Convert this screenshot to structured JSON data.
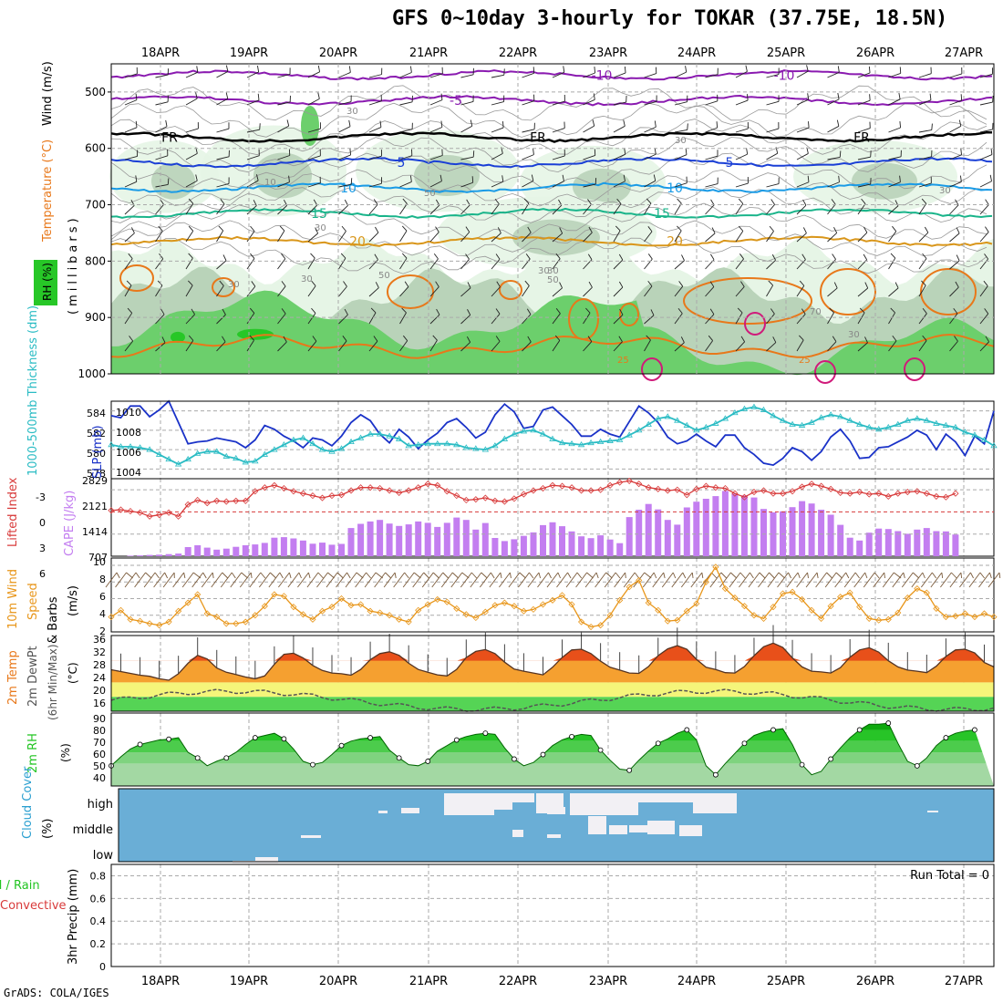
{
  "title": "GFS 0~10day 3-hourly for TOKAR (37.75E, 18.5N)",
  "credit": "GrADS: COLA/IGES",
  "colors": {
    "purple": "#8a1ab0",
    "black": "#000000",
    "blue": "#1a3fd6",
    "cyan_blue": "#1a9be6",
    "teal": "#19b48a",
    "gold": "#d9961a",
    "orange": "#e8781a",
    "magenta": "#d01a7a",
    "rh_light": "#e6f5e6",
    "rh_mid": "#b9d3b9",
    "rh_green": "#6ccf6c",
    "rh_bright": "#27c727",
    "slp": "#1a32c8",
    "thick": "#2bbcc4",
    "li": "#d83a3a",
    "cape": "#c37ef0",
    "wind10": "#e8961a",
    "cloud_sky": "#6aaed6",
    "cloud": "#f2f0f4",
    "rh2m": "#22c422"
  },
  "chart_data": [
    {
      "type": "contour",
      "panel": "upper-air cross section",
      "date_labels": [
        "18APR",
        "19APR",
        "20APR",
        "21APR",
        "22APR",
        "23APR",
        "24APR",
        "25APR",
        "26APR",
        "27APR"
      ],
      "ylabel": [
        "Temperature (°C)",
        "Wind (m/s)"
      ],
      "ylabel_pressure": "(millibars)",
      "rh_label": "RH (%)",
      "y_ticks": [
        500,
        600,
        700,
        800,
        900,
        1000
      ],
      "ylim": [
        450,
        1000
      ],
      "isotherms": [
        {
          "label": "-10",
          "pressure": 470,
          "color": "purple"
        },
        {
          "label": "-5",
          "pressure": 515,
          "color": "purple"
        },
        {
          "label": "FR",
          "pressure": 580,
          "color": "black"
        },
        {
          "label": "5",
          "pressure": 625,
          "color": "blue"
        },
        {
          "label": "10",
          "pressure": 670,
          "color": "cyan_blue"
        },
        {
          "label": "15",
          "pressure": 715,
          "color": "teal"
        },
        {
          "label": "20",
          "pressure": 765,
          "color": "gold"
        }
      ],
      "contour_labels": [
        "10",
        "30",
        "30",
        "50",
        "30",
        "50",
        "30",
        "30",
        "50",
        "70",
        "30",
        "30",
        "30",
        "30",
        "25",
        "25"
      ]
    },
    {
      "type": "line",
      "panel": "slp-thickness",
      "ylabel_left": "1000-500mb Thickness (dm)",
      "ylabel_right": "SLP (mb)",
      "left_ticks": [
        "584",
        "582",
        "580",
        "578"
      ],
      "right_ticks": [
        "1010",
        "1008",
        "1006",
        "1004"
      ],
      "ylim_slp": [
        1003,
        1011
      ],
      "series": [
        {
          "name": "SLP",
          "color": "slp",
          "values": [
            1009.5,
            1009.3,
            1010.5,
            1010.5,
            1009.4,
            1010.1,
            1011.0,
            1008.8,
            1006.6,
            1006.8,
            1006.9,
            1007.2,
            1007.0,
            1006.8,
            1006.2,
            1007.0,
            1008.5,
            1008.1,
            1007.4,
            1006.9,
            1006.2,
            1007.2,
            1007.0,
            1006.4,
            1007.4,
            1008.8,
            1009.6,
            1009.0,
            1007.6,
            1006.7,
            1008.1,
            1007.3,
            1006.1,
            1007.0,
            1007.7,
            1008.8,
            1009.2,
            1008.3,
            1007.2,
            1007.8,
            1009.6,
            1010.7,
            1009.9,
            1008.2,
            1008.4,
            1010.1,
            1010.4,
            1009.5,
            1008.6,
            1007.4,
            1007.4,
            1008.1,
            1007.6,
            1007.3,
            1008.9,
            1010.5,
            1009.8,
            1008.8,
            1007.3,
            1006.6,
            1006.9,
            1007.6,
            1006.9,
            1006.3,
            1007.5,
            1007.5,
            1006.2,
            1005.5,
            1004.6,
            1004.4,
            1005.1,
            1006.2,
            1005.8,
            1004.9,
            1005.8,
            1007.3,
            1008.1,
            1006.9,
            1005.1,
            1005.2,
            1006.2,
            1006.3,
            1006.8,
            1007.3,
            1008.0,
            1007.5,
            1006.0,
            1007.6,
            1006.8,
            1005.4,
            1007.4,
            1006.6,
            1010.0
          ]
        },
        {
          "name": "Thickness",
          "color": "thick",
          "values": [
            1006.5,
            1006.3,
            1006.3,
            1006.2,
            1006.0,
            1005.5,
            1005.0,
            1004.5,
            1005.0,
            1005.6,
            1005.8,
            1005.8,
            1005.3,
            1005.1,
            1004.7,
            1004.8,
            1005.5,
            1006.0,
            1006.5,
            1007.0,
            1007.2,
            1006.6,
            1006.0,
            1005.8,
            1006.1,
            1006.8,
            1007.2,
            1007.6,
            1007.6,
            1007.4,
            1007.1,
            1006.4,
            1006.5,
            1006.6,
            1006.6,
            1006.6,
            1006.5,
            1006.2,
            1006.1,
            1006.0,
            1006.4,
            1007.1,
            1007.6,
            1007.9,
            1008.0,
            1007.6,
            1007.1,
            1006.7,
            1006.6,
            1006.5,
            1006.7,
            1006.8,
            1006.9,
            1007.0,
            1007.5,
            1008.0,
            1008.6,
            1009.2,
            1009.4,
            1009.0,
            1008.5,
            1008.0,
            1008.3,
            1008.7,
            1009.2,
            1009.8,
            1010.2,
            1010.4,
            1010.1,
            1009.5,
            1009.0,
            1008.6,
            1008.5,
            1008.8,
            1009.3,
            1009.6,
            1009.4,
            1009.0,
            1008.6,
            1008.3,
            1008.1,
            1008.3,
            1008.6,
            1009.0,
            1009.2,
            1009.0,
            1008.7,
            1008.5,
            1008.3,
            1007.8,
            1007.5,
            1007.0,
            1006.4
          ]
        }
      ]
    },
    {
      "type": "bar-line",
      "panel": "cape-lifted-index",
      "ylabel_left": "Lifted Index",
      "ylabel_right": "CAPE (J/kg)",
      "li_ticks": [
        "-3",
        "0",
        "3",
        "6"
      ],
      "cape_ticks": [
        "2829",
        "2121",
        "1414",
        "707"
      ],
      "cape_values": [
        0,
        0,
        20,
        30,
        50,
        60,
        80,
        100,
        350,
        420,
        330,
        250,
        290,
        360,
        420,
        450,
        510,
        710,
        730,
        680,
        600,
        480,
        520,
        440,
        470,
        1080,
        1240,
        1330,
        1390,
        1250,
        1160,
        1220,
        1330,
        1280,
        1120,
        1280,
        1480,
        1390,
        1020,
        1270,
        700,
        580,
        650,
        780,
        910,
        1190,
        1300,
        1150,
        950,
        760,
        690,
        800,
        640,
        500,
        1500,
        1780,
        2000,
        1790,
        1390,
        1210,
        1870,
        2090,
        2200,
        2300,
        2500,
        2400,
        2330,
        2250,
        1810,
        1680,
        1720,
        1880,
        2110,
        2020,
        1780,
        1590,
        1200,
        710,
        600,
        900,
        1060,
        1040,
        960,
        860,
        1020,
        1080,
        960,
        950,
        830
      ],
      "li_values": [
        -0.2,
        -0.3,
        -0.1,
        0.1,
        0.6,
        0.4,
        0.1,
        0.6,
        -1.0,
        -1.6,
        -1.2,
        -1.5,
        -1.4,
        -1.5,
        -1.5,
        -2.8,
        -3.3,
        -3.6,
        -3.2,
        -2.8,
        -2.5,
        -2.2,
        -1.9,
        -2.2,
        -2.3,
        -2.9,
        -3.3,
        -3.3,
        -3.2,
        -2.9,
        -2.6,
        -2.9,
        -3.3,
        -3.8,
        -3.6,
        -2.8,
        -2.2,
        -1.6,
        -1.7,
        -1.9,
        -1.5,
        -1.4,
        -1.8,
        -2.4,
        -2.9,
        -3.2,
        -3.6,
        -3.5,
        -3.3,
        -2.9,
        -2.9,
        -3.0,
        -3.6,
        -4.0,
        -4.2,
        -3.8,
        -3.3,
        -3.1,
        -2.9,
        -3.0,
        -2.3,
        -3.1,
        -3.5,
        -3.3,
        -3.2,
        -2.5,
        -2.0,
        -2.7,
        -2.9,
        -2.5,
        -2.5,
        -2.8,
        -3.4,
        -3.8,
        -3.5,
        -3.1,
        -2.6,
        -2.5,
        -2.7,
        -2.4,
        -2.5,
        -2.1,
        -2.5,
        -2.7,
        -2.8,
        -2.5,
        -2.1,
        -2.0,
        -2.5
      ]
    },
    {
      "type": "line",
      "panel": "10m-wind",
      "ylabel": [
        "10m Wind",
        "Speed & Barbs (m/s)"
      ],
      "ylabel_speed": "Speed",
      "ylabel_barbs": "& Barbs",
      "ylabel_units": "(m/s)",
      "y_ticks": [
        "10",
        "8",
        "6",
        "4",
        "2"
      ],
      "ylim": [
        2,
        10
      ],
      "values": [
        3.8,
        4.6,
        3.5,
        3.3,
        3.0,
        2.8,
        3.2,
        4.5,
        5.5,
        6.5,
        4.2,
        3.8,
        3.0,
        3.0,
        3.2,
        4.0,
        5.1,
        6.5,
        6.3,
        5.0,
        4.1,
        3.5,
        4.5,
        5.0,
        6.0,
        5.2,
        5.3,
        4.5,
        4.3,
        4.0,
        3.5,
        3.2,
        4.6,
        5.3,
        5.9,
        5.6,
        4.8,
        4.1,
        3.7,
        4.4,
        5.2,
        5.5,
        5.1,
        4.5,
        4.7,
        5.3,
        5.8,
        6.4,
        5.3,
        3.2,
        2.6,
        2.8,
        4.0,
        5.8,
        7.4,
        8.2,
        5.5,
        4.6,
        3.3,
        3.4,
        4.5,
        5.4,
        8.0,
        9.8,
        7.2,
        6.1,
        5.1,
        4.0,
        3.6,
        5.0,
        6.6,
        6.8,
        5.9,
        4.6,
        3.6,
        5.1,
        6.2,
        6.7,
        5.0,
        3.6,
        3.4,
        3.5,
        4.3,
        6.1,
        7.2,
        6.7,
        4.8,
        3.8,
        3.9,
        4.2,
        3.8,
        4.2,
        3.8
      ]
    },
    {
      "type": "area",
      "panel": "2m-temperature",
      "ylabel": [
        "2m Temp",
        "2m DewPt",
        "(6hr Min/Max)",
        "(°C)"
      ],
      "y_ticks": [
        "36",
        "32",
        "28",
        "24",
        "20",
        "16"
      ],
      "ylim": [
        16,
        37
      ],
      "temp": [
        27.5,
        27.0,
        26.5,
        26.0,
        25.7,
        25.0,
        24.6,
        26.4,
        29.3,
        31.5,
        30.5,
        28.0,
        26.8,
        26.2,
        25.5,
        25.0,
        25.8,
        29.0,
        31.8,
        32.1,
        30.8,
        28.7,
        27.3,
        26.6,
        26.4,
        26.0,
        27.6,
        30.3,
        32.0,
        32.5,
        31.5,
        29.3,
        27.6,
        26.8,
        26.1,
        25.8,
        27.6,
        30.9,
        32.6,
        33.1,
        32.0,
        29.6,
        27.7,
        27.1,
        26.6,
        26.1,
        28.2,
        30.9,
        33.0,
        33.2,
        32.0,
        29.9,
        28.2,
        27.4,
        26.6,
        26.5,
        28.4,
        31.4,
        33.3,
        34.2,
        33.2,
        30.4,
        28.2,
        27.6,
        26.7,
        26.6,
        28.4,
        31.4,
        33.9,
        34.9,
        33.7,
        30.8,
        28.3,
        27.1,
        26.9,
        26.6,
        28.1,
        31.0,
        33.0,
        33.6,
        32.4,
        30.0,
        28.3,
        27.4,
        27.1,
        26.7,
        28.5,
        31.2,
        33.0,
        33.2,
        32.2,
        29.5,
        28.3
      ]
    },
    {
      "type": "area",
      "panel": "2m-rh",
      "ylabel": [
        "2m RH",
        "(%)"
      ],
      "y_ticks": [
        "90",
        "80",
        "70",
        "60",
        "50",
        "40"
      ],
      "ylim": [
        30,
        95
      ],
      "values": [
        48.0,
        56.0,
        63.0,
        67.0,
        69.0,
        71.0,
        71.7,
        73.0,
        60.0,
        55.0,
        48.0,
        52.0,
        55.0,
        60.0,
        67.0,
        73.0,
        75.0,
        77.0,
        72.0,
        63.0,
        52.0,
        49.0,
        51.0,
        58.0,
        66.0,
        70.0,
        72.0,
        73.0,
        74.0,
        62.0,
        55.0,
        49.0,
        48.0,
        52.0,
        61.0,
        66.0,
        71.0,
        74.0,
        76.0,
        77.0,
        76.0,
        64.0,
        54.0,
        48.0,
        51.0,
        58.0,
        66.0,
        71.0,
        74.0,
        76.0,
        75.0,
        62.0,
        53.0,
        45.0,
        44.0,
        53.0,
        61.0,
        68.0,
        72.0,
        77.0,
        80.0,
        71.0,
        48.0,
        40.0,
        50.0,
        59.0,
        68.0,
        75.0,
        78.0,
        80.0,
        81.0,
        67.0,
        49.0,
        40.0,
        43.0,
        54.0,
        64.0,
        73.0,
        80.0,
        85.0,
        85.0,
        86.0,
        68.0,
        52.0,
        48.0,
        55.0,
        66.0,
        73.0,
        77.0,
        79.0,
        80.0
      ]
    },
    {
      "type": "heatmap",
      "panel": "cloud-cover",
      "ylabel": [
        "Cloud Cover",
        "(%)"
      ],
      "levels": [
        "high",
        "middle",
        "low"
      ]
    },
    {
      "type": "bar",
      "panel": "precipitation",
      "ylabel": [
        "Total / Rain",
        "Convective",
        "3hr Precip (mm)"
      ],
      "ylabel_total": "Total / Rain",
      "ylabel_conv": "Convective",
      "ylabel_precip": "3hr Precip (mm)",
      "y_ticks": [
        "0.8",
        "0.6",
        "0.4",
        "0.2",
        "0"
      ],
      "ylim": [
        0,
        0.9
      ],
      "run_total": "Run Total = 0",
      "values": [
        0,
        0,
        0,
        0,
        0,
        0,
        0,
        0,
        0,
        0,
        0,
        0,
        0,
        0,
        0,
        0,
        0,
        0,
        0,
        0,
        0,
        0,
        0,
        0,
        0,
        0,
        0,
        0,
        0,
        0,
        0,
        0,
        0,
        0,
        0,
        0,
        0,
        0,
        0,
        0,
        0,
        0,
        0,
        0,
        0,
        0,
        0,
        0,
        0,
        0,
        0,
        0,
        0,
        0,
        0,
        0,
        0,
        0,
        0,
        0,
        0,
        0,
        0,
        0,
        0,
        0,
        0,
        0,
        0,
        0,
        0,
        0,
        0,
        0,
        0,
        0,
        0,
        0,
        0,
        0,
        0,
        0,
        0,
        0,
        0,
        0,
        0,
        0,
        0
      ]
    }
  ]
}
